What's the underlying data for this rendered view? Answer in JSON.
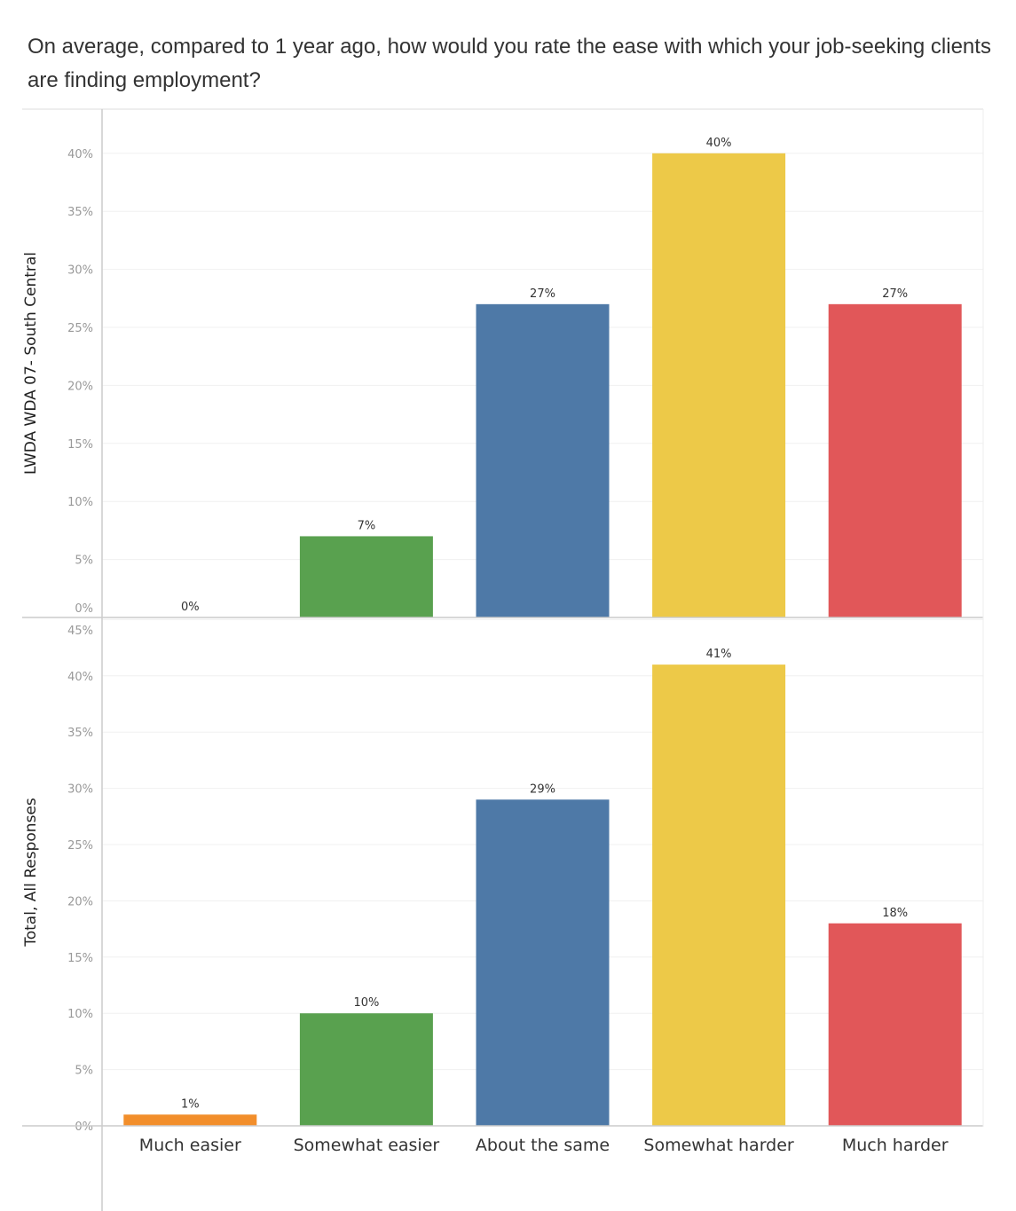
{
  "chart_data": {
    "type": "bar",
    "title": "On average, compared to 1 year ago, how would you rate the ease with which your job-seeking clients are finding employment?",
    "categories": [
      "Much easier",
      "Somewhat easier",
      "About the same",
      "Somewhat harder",
      "Much harder"
    ],
    "colors": [
      "#f28e2b",
      "#59a14f",
      "#4e79a7",
      "#edc948",
      "#e15759"
    ],
    "grid": true,
    "panels": [
      {
        "ylabel": "LWDA WDA 07- South Central",
        "values": [
          0,
          7,
          27,
          40,
          27
        ],
        "data_labels": [
          "0%",
          "7%",
          "27%",
          "40%",
          "27%"
        ],
        "ylim": [
          0,
          45
        ],
        "ticks": [
          "0%",
          "5%",
          "10%",
          "15%",
          "20%",
          "25%",
          "30%",
          "35%",
          "40%"
        ]
      },
      {
        "ylabel": "Total, All Responses",
        "values": [
          1,
          10,
          29,
          41,
          18
        ],
        "data_labels": [
          "1%",
          "10%",
          "29%",
          "41%",
          "18%"
        ],
        "ylim": [
          0,
          45
        ],
        "ticks": [
          "0%",
          "5%",
          "10%",
          "15%",
          "20%",
          "25%",
          "30%",
          "35%",
          "40%",
          "45%"
        ]
      }
    ]
  }
}
